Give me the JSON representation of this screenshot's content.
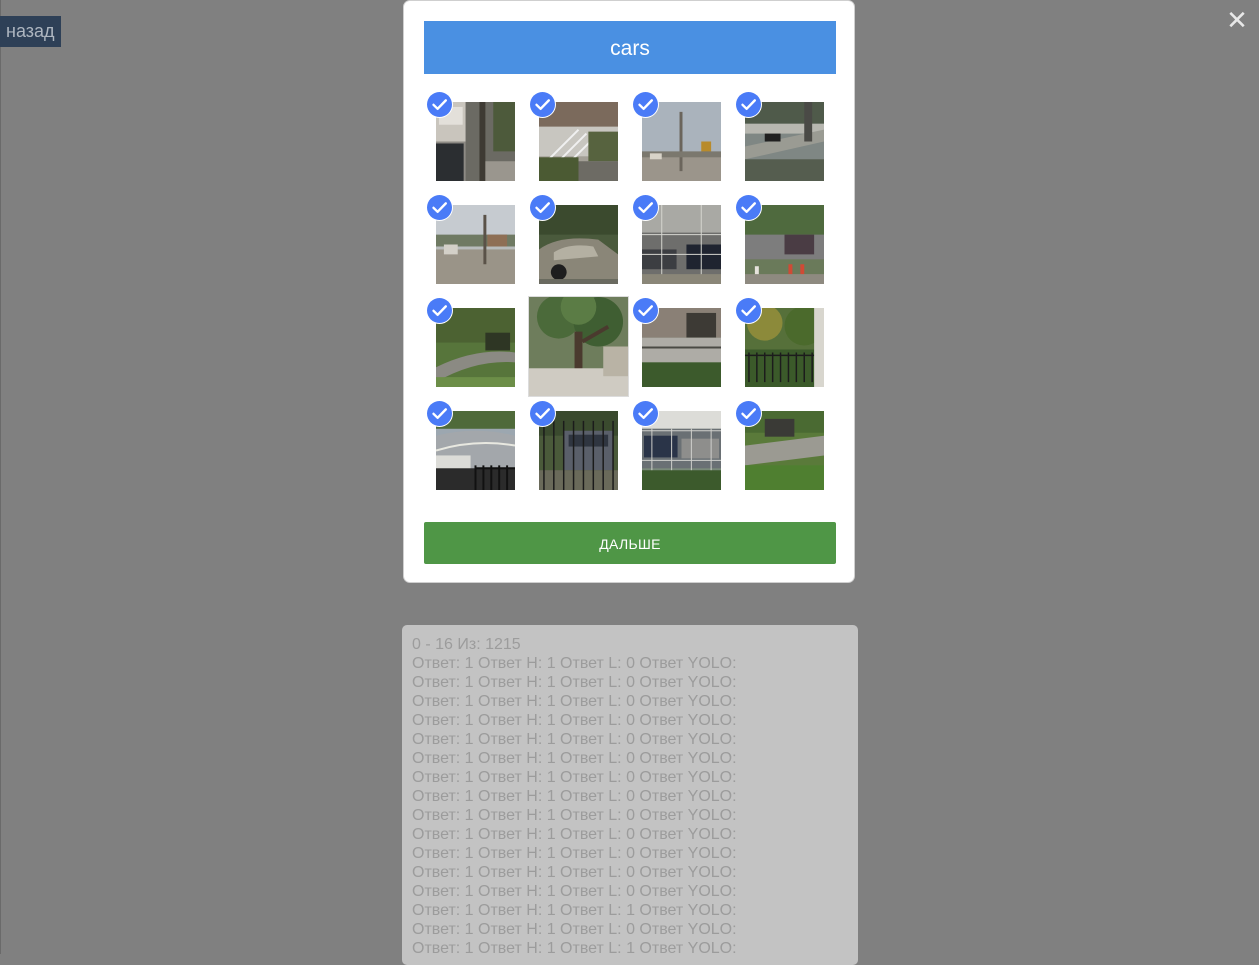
{
  "nav": {
    "back_label": "назад",
    "close_glyph": "✕"
  },
  "challenge": {
    "title": "cars",
    "next_label": "ДАЛЬШЕ",
    "tiles": [
      {
        "scene": "house-wall-car",
        "selected": true
      },
      {
        "scene": "stairs-porch",
        "selected": true
      },
      {
        "scene": "pole-sky-grainy",
        "selected": true
      },
      {
        "scene": "overpass-car",
        "selected": true
      },
      {
        "scene": "street-sign-grainy",
        "selected": true
      },
      {
        "scene": "silver-car-closeup",
        "selected": true
      },
      {
        "scene": "chainlink-fence-cars",
        "selected": true
      },
      {
        "scene": "fence-hydrant-car",
        "selected": true
      },
      {
        "scene": "grass-road-bush",
        "selected": true
      },
      {
        "scene": "tree-sidewalk",
        "selected": false
      },
      {
        "scene": "house-fence-lawn",
        "selected": true
      },
      {
        "scene": "trees-fence",
        "selected": true
      },
      {
        "scene": "curve-road-car",
        "selected": true
      },
      {
        "scene": "fence-dark-suv",
        "selected": true
      },
      {
        "scene": "fence-parked-cars",
        "selected": true
      },
      {
        "scene": "lawn-driveway-car",
        "selected": true
      }
    ]
  },
  "log": {
    "summary": "0 - 16 Из: 1215",
    "lines": [
      "Ответ: 1 Ответ H: 1 Ответ L: 0 Ответ YOLO:",
      "Ответ: 1 Ответ H: 1 Ответ L: 0 Ответ YOLO:",
      "Ответ: 1 Ответ H: 1 Ответ L: 0 Ответ YOLO:",
      "Ответ: 1 Ответ H: 1 Ответ L: 0 Ответ YOLO:",
      "Ответ: 1 Ответ H: 1 Ответ L: 0 Ответ YOLO:",
      "Ответ: 1 Ответ H: 1 Ответ L: 0 Ответ YOLO:",
      "Ответ: 1 Ответ H: 1 Ответ L: 0 Ответ YOLO:",
      "Ответ: 1 Ответ H: 1 Ответ L: 0 Ответ YOLO:",
      "Ответ: 1 Ответ H: 1 Ответ L: 0 Ответ YOLO:",
      "Ответ: 1 Ответ H: 1 Ответ L: 0 Ответ YOLO:",
      "Ответ: 1 Ответ H: 1 Ответ L: 0 Ответ YOLO:",
      "Ответ: 1 Ответ H: 1 Ответ L: 0 Ответ YOLO:",
      "Ответ: 1 Ответ H: 1 Ответ L: 0 Ответ YOLO:",
      "Ответ: 1 Ответ H: 1 Ответ L: 1 Ответ YOLO:",
      "Ответ: 1 Ответ H: 1 Ответ L: 0 Ответ YOLO:",
      "Ответ: 1 Ответ H: 1 Ответ L: 1 Ответ YOLO:"
    ]
  },
  "colors": {
    "overlay": "#808080",
    "header_blue": "#4a90e2",
    "check_blue": "#4a7bf7",
    "next_green": "#4f9646",
    "back_navy": "#2e4057"
  }
}
